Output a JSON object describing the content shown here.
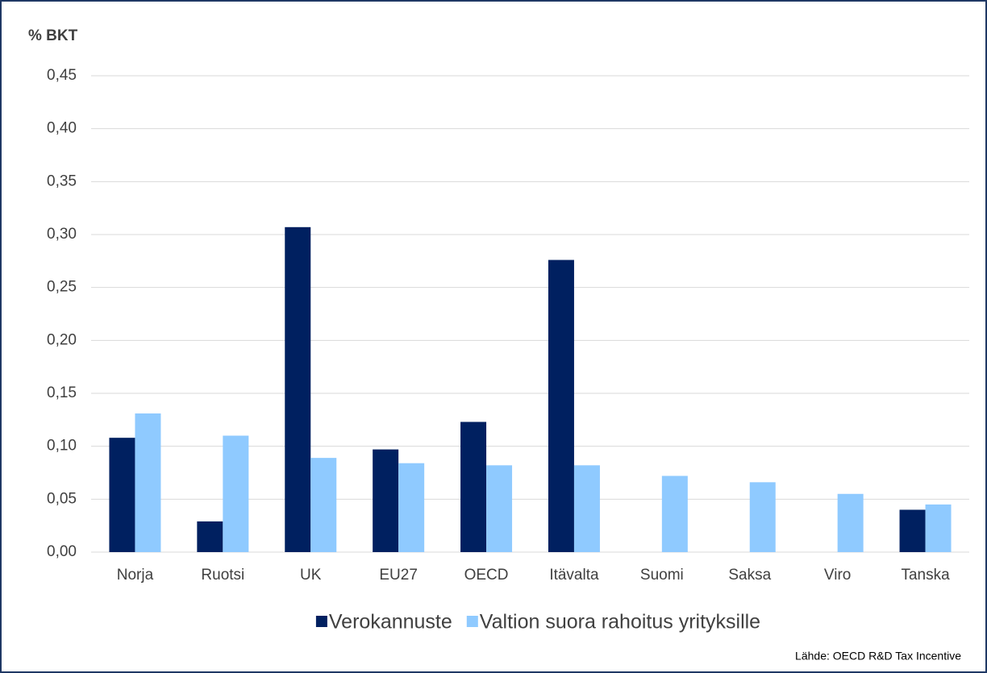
{
  "chart_data": {
    "type": "bar",
    "y_label": "% BKT",
    "source": "Lähde: OECD R&D Tax Incentive",
    "categories": [
      "Norja",
      "Ruotsi",
      "UK",
      "EU27",
      "OECD",
      "Itävalta",
      "Suomi",
      "Saksa",
      "Viro",
      "Tanska"
    ],
    "series": [
      {
        "name": "Verokannuste",
        "color": "#002060",
        "values": [
          0.108,
          0.029,
          0.307,
          0.097,
          0.123,
          0.276,
          null,
          null,
          null,
          0.04
        ]
      },
      {
        "name": "Valtion suora rahoitus yrityksille",
        "color": "#8fcaff",
        "values": [
          0.131,
          0.11,
          0.089,
          0.084,
          0.082,
          0.082,
          0.072,
          0.066,
          0.055,
          0.045
        ]
      }
    ],
    "ylim": [
      0,
      0.45
    ],
    "yticks": [
      {
        "value": 0,
        "label": "0,00"
      },
      {
        "value": 0.05,
        "label": "0,05"
      },
      {
        "value": 0.1,
        "label": "0,10"
      },
      {
        "value": 0.15,
        "label": "0,15"
      },
      {
        "value": 0.2,
        "label": "0,20"
      },
      {
        "value": 0.25,
        "label": "0,25"
      },
      {
        "value": 0.3,
        "label": "0,30"
      },
      {
        "value": 0.35,
        "label": "0,35"
      },
      {
        "value": 0.4,
        "label": "0,40"
      },
      {
        "value": 0.45,
        "label": "0,45"
      }
    ],
    "grid": true
  }
}
